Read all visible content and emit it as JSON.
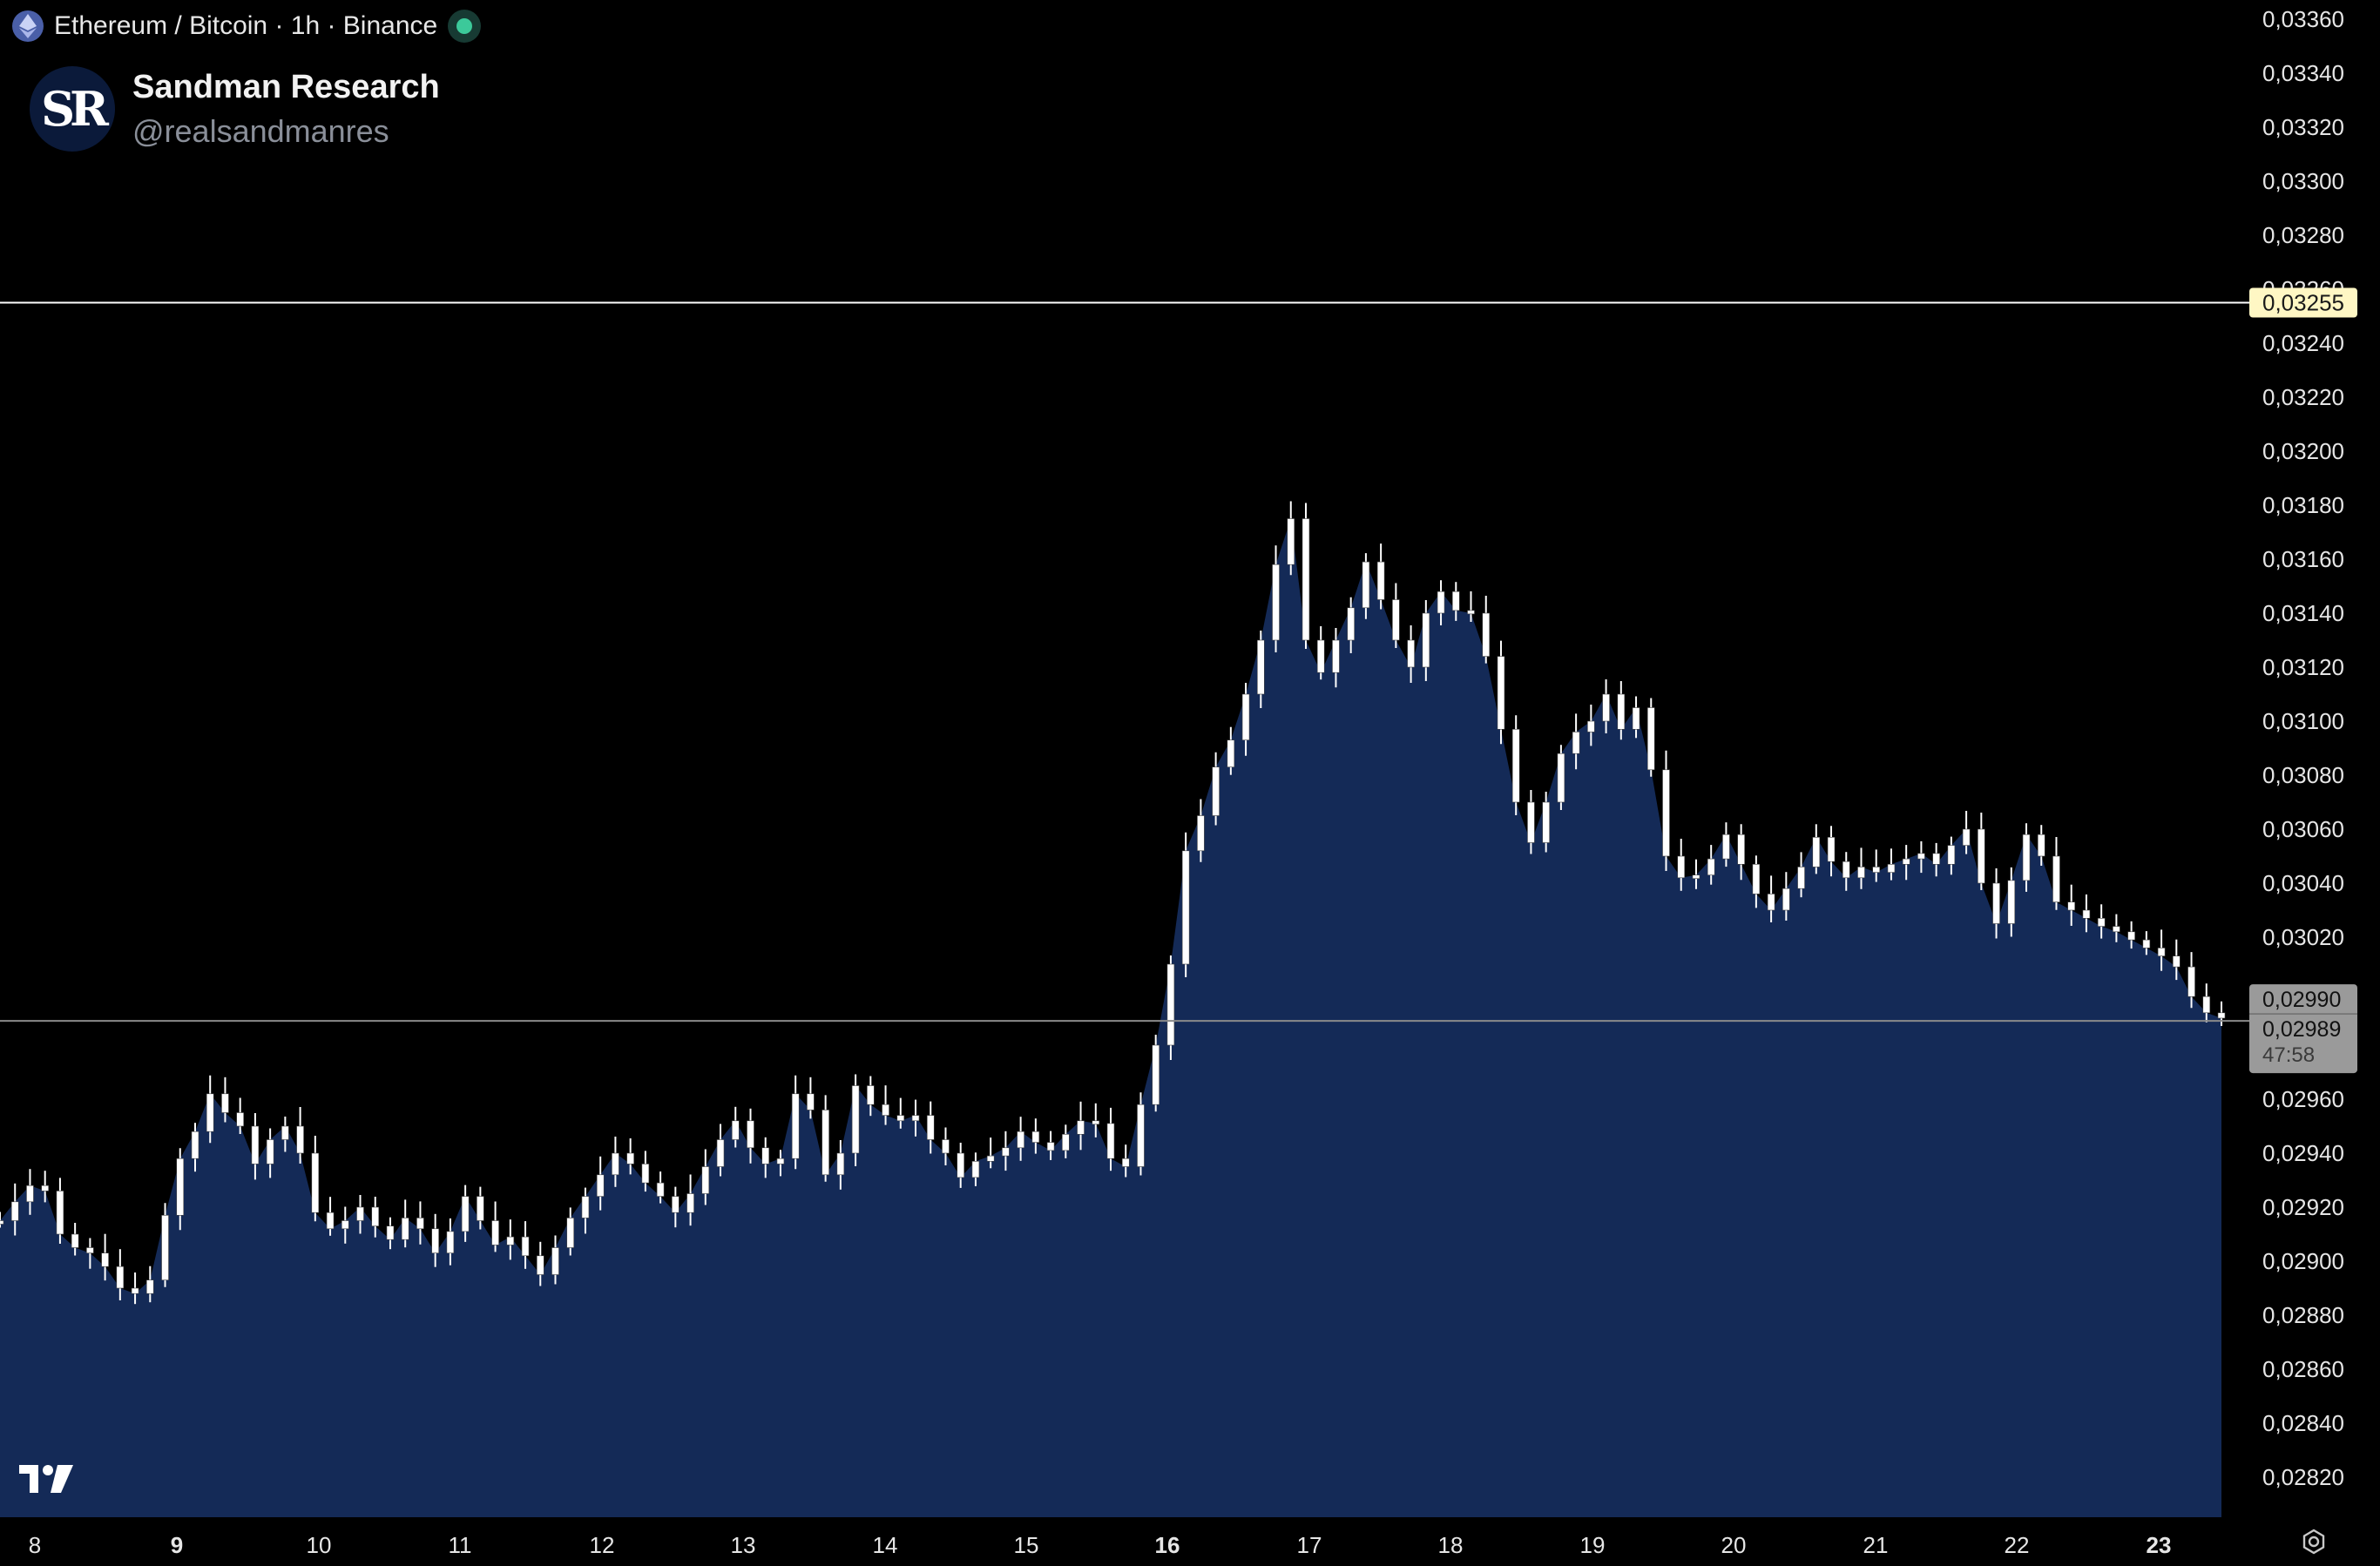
{
  "header": {
    "symbol_title": "Ethereum / Bitcoin · 1h · Binance",
    "brand_name": "Sandman Research",
    "brand_handle": "@realsandmanres",
    "avatar_initials": "SR"
  },
  "price_scale": {
    "ticks": [
      "0,03360",
      "0,03340",
      "0,03320",
      "0,03300",
      "0,03280",
      "0,03260",
      "0,03240",
      "0,03220",
      "0,03200",
      "0,03180",
      "0,03160",
      "0,03140",
      "0,03120",
      "0,03100",
      "0,03080",
      "0,03060",
      "0,03040",
      "0,03020",
      "0,02990",
      "0,02960",
      "0,02940",
      "0,02920",
      "0,02900",
      "0,02880",
      "0,02860",
      "0,02840",
      "0,02820"
    ],
    "marked_level_label": "0,03255",
    "last_price_label": "0,02990",
    "current_price_label": "0,02989",
    "countdown": "47:58"
  },
  "time_axis": {
    "labels": [
      "8",
      "9",
      "10",
      "11",
      "12",
      "13",
      "14",
      "15",
      "16",
      "17",
      "18",
      "19",
      "20",
      "21",
      "22",
      "23"
    ],
    "bold_labels": [
      "9",
      "16",
      "23"
    ]
  },
  "colors": {
    "background": "#000000",
    "area_fill": "#142a57",
    "candle": "#ffffff",
    "level_line": "#ffffff",
    "level_badge": "#fff7c4",
    "current_line": "#8a8a8a",
    "price_badge": "#9a9a9a",
    "live_indicator": "#3cc99a",
    "eth_icon": "#4a5fa8"
  },
  "chart_data": {
    "type": "line",
    "series": [
      {
        "values": [
          0.02915,
          0.02922,
          0.02928,
          0.02926,
          0.0291,
          0.02905,
          0.02903,
          0.02898,
          0.0289,
          0.02888,
          0.02893,
          0.02917,
          0.02938,
          0.02948,
          0.02962,
          0.02955,
          0.0295,
          0.02936,
          0.02945,
          0.0295,
          0.0294,
          0.02918,
          0.02912,
          0.02915,
          0.0292,
          0.02913,
          0.02908,
          0.02916,
          0.02912,
          0.02903,
          0.02911,
          0.02924,
          0.02915,
          0.02906,
          0.02909,
          0.02902,
          0.02895,
          0.02905,
          0.02916,
          0.02924,
          0.02932,
          0.0294,
          0.02936,
          0.02929,
          0.02924,
          0.02918,
          0.02925,
          0.02935,
          0.02945,
          0.02952,
          0.02942,
          0.02936,
          0.02938,
          0.02962,
          0.02956,
          0.02932,
          0.0294,
          0.02965,
          0.02958,
          0.02954,
          0.02952,
          0.02954,
          0.02945,
          0.0294,
          0.02931,
          0.02937,
          0.02939,
          0.02942,
          0.02948,
          0.02944,
          0.02941,
          0.02947,
          0.02952,
          0.02951,
          0.02938,
          0.02935,
          0.02958,
          0.0298,
          0.0301,
          0.03052,
          0.03065,
          0.03083,
          0.03093,
          0.0311,
          0.0313,
          0.03158,
          0.03175,
          0.0313,
          0.03118,
          0.0313,
          0.03142,
          0.03159,
          0.03145,
          0.0313,
          0.0312,
          0.0314,
          0.03148,
          0.03141,
          0.0314,
          0.03124,
          0.03097,
          0.0307,
          0.03055,
          0.0307,
          0.03088,
          0.03096,
          0.031,
          0.0311,
          0.03097,
          0.03105,
          0.03082,
          0.0305,
          0.03042,
          0.03043,
          0.03049,
          0.03058,
          0.03047,
          0.03036,
          0.0303,
          0.03038,
          0.03046,
          0.03057,
          0.03048,
          0.03042,
          0.03046,
          0.03044,
          0.03047,
          0.03049,
          0.03051,
          0.03047,
          0.03054,
          0.0306,
          0.0304,
          0.03025,
          0.03041,
          0.03058,
          0.0305,
          0.03033,
          0.0303,
          0.03027,
          0.03024,
          0.03022,
          0.03019,
          0.03016,
          0.03013,
          0.03009,
          0.02998,
          0.02992,
          0.0299
        ]
      }
    ],
    "x_labels": [
      "8",
      "9",
      "10",
      "11",
      "12",
      "13",
      "14",
      "15",
      "16",
      "17",
      "18",
      "19",
      "20",
      "21",
      "22",
      "23"
    ],
    "ylim": [
      0.02805,
      0.03365
    ],
    "horizontal_levels": [
      0.03255,
      0.0299
    ],
    "current_price": 0.02989,
    "grid": false,
    "title": "Ethereum / Bitcoin · 1h · Binance"
  }
}
